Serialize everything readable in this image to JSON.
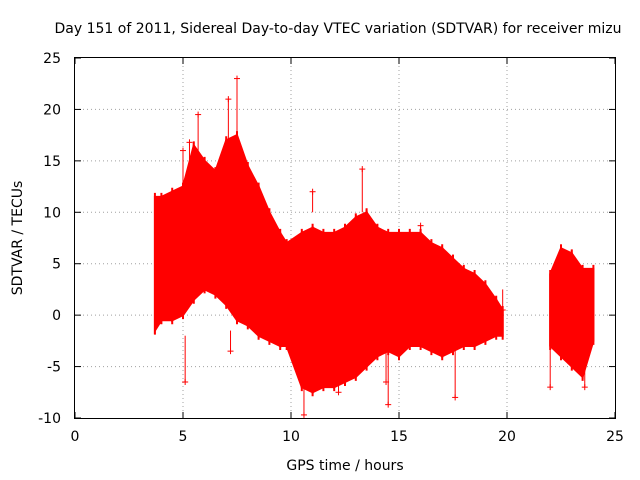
{
  "chart_data": {
    "type": "scatter",
    "title": "Day 151 of 2011, Sidereal Day-to-day VTEC variation (SDTVAR) for receiver mizu",
    "xlabel": "GPS time / hours",
    "ylabel": "SDTVAR / TECUs",
    "xlim": [
      0,
      25
    ],
    "ylim": [
      -10,
      25
    ],
    "x_ticks": [
      "0",
      "5",
      "10",
      "15",
      "20",
      "25"
    ],
    "y_ticks": [
      "-10",
      "-5",
      "0",
      "5",
      "10",
      "15",
      "20",
      "25"
    ],
    "grid": true,
    "marker": "+",
    "color": "#ff0000",
    "series": [
      {
        "name": "SDTVAR",
        "note": "dense band per time; values are [time_hours, lower_envelope, upper_envelope]",
        "envelope": [
          [
            3.7,
            -1.5,
            11.5
          ],
          [
            4.0,
            -0.5,
            11.5
          ],
          [
            4.5,
            -0.5,
            12.0
          ],
          [
            5.0,
            0.0,
            12.5
          ],
          [
            5.5,
            1.5,
            16.5
          ],
          [
            6.0,
            2.5,
            15.0
          ],
          [
            6.5,
            2.0,
            14.0
          ],
          [
            7.0,
            1.0,
            17.0
          ],
          [
            7.5,
            -0.5,
            17.5
          ],
          [
            8.0,
            -1.0,
            14.5
          ],
          [
            8.5,
            -2.0,
            12.5
          ],
          [
            9.0,
            -2.5,
            10.0
          ],
          [
            9.5,
            -3.0,
            8.0
          ],
          [
            9.8,
            -3.0,
            7.0
          ],
          [
            10.5,
            -7.0,
            8.0
          ],
          [
            11.0,
            -7.5,
            8.5
          ],
          [
            11.5,
            -7.0,
            8.0
          ],
          [
            12.0,
            -7.0,
            8.0
          ],
          [
            12.5,
            -6.5,
            8.5
          ],
          [
            13.0,
            -6.0,
            9.5
          ],
          [
            13.5,
            -5.0,
            10.0
          ],
          [
            14.0,
            -4.0,
            8.5
          ],
          [
            14.5,
            -3.5,
            8.0
          ],
          [
            15.0,
            -4.0,
            8.0
          ],
          [
            15.5,
            -3.0,
            8.0
          ],
          [
            16.0,
            -3.0,
            8.0
          ],
          [
            16.5,
            -3.5,
            7.0
          ],
          [
            17.0,
            -4.0,
            6.5
          ],
          [
            17.5,
            -3.5,
            5.5
          ],
          [
            18.0,
            -3.0,
            4.5
          ],
          [
            18.5,
            -3.0,
            4.0
          ],
          [
            19.0,
            -2.5,
            3.0
          ],
          [
            19.5,
            -2.0,
            1.5
          ],
          [
            19.8,
            -2.0,
            0.5
          ],
          [
            22.0,
            -3.0,
            4.0
          ],
          [
            22.5,
            -4.0,
            6.5
          ],
          [
            23.0,
            -5.0,
            6.0
          ],
          [
            23.5,
            -6.0,
            4.5
          ],
          [
            24.0,
            -2.5,
            4.5
          ]
        ],
        "outliers": [
          [
            5.0,
            16.0
          ],
          [
            5.1,
            -6.5
          ],
          [
            5.3,
            16.8
          ],
          [
            5.7,
            19.5
          ],
          [
            7.1,
            21.0
          ],
          [
            7.5,
            23.0
          ],
          [
            7.2,
            -3.5
          ],
          [
            10.6,
            -9.7
          ],
          [
            11.0,
            12.0
          ],
          [
            13.3,
            14.2
          ],
          [
            13.0,
            9.3
          ],
          [
            12.2,
            -7.5
          ],
          [
            14.4,
            -6.5
          ],
          [
            14.5,
            -8.7
          ],
          [
            16.0,
            8.7
          ],
          [
            17.6,
            -8.0
          ],
          [
            17.2,
            3.0
          ],
          [
            22.0,
            -7.0
          ],
          [
            23.6,
            -7.0
          ],
          [
            19.8,
            0.5
          ]
        ]
      }
    ]
  }
}
